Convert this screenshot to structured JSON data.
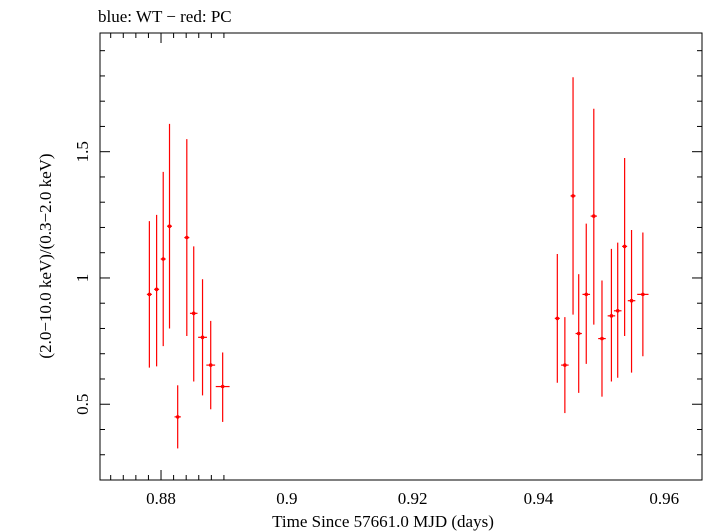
{
  "chart_data": {
    "type": "scatter",
    "title": "blue: WT − red: PC",
    "xlabel": "Time Since 57661.0 MJD (days)",
    "ylabel": "(2.0−10.0 keV)/(0.3−2.0 keV)",
    "xlim": [
      0.8703,
      0.966
    ],
    "ylim": [
      0.2,
      1.97
    ],
    "x_major_ticks": [
      0.88,
      0.9,
      0.92,
      0.94,
      0.96
    ],
    "x_tick_labels": [
      "0.88",
      "0.9",
      "0.92",
      "0.94",
      "0.96"
    ],
    "y_major_ticks": [
      0.5,
      1.0,
      1.5
    ],
    "y_tick_labels": [
      "0.5",
      "1",
      "1.5"
    ],
    "grid": false,
    "series": [
      {
        "color": "#ff0000",
        "points": [
          {
            "x": 0.87815,
            "y": 0.935,
            "xerr": 0.0004,
            "ylo": 0.645,
            "yhi": 1.225
          },
          {
            "x": 0.8793,
            "y": 0.955,
            "xerr": 0.0004,
            "ylo": 0.65,
            "yhi": 1.25
          },
          {
            "x": 0.88035,
            "y": 1.075,
            "xerr": 0.0004,
            "ylo": 0.73,
            "yhi": 1.42
          },
          {
            "x": 0.88135,
            "y": 1.205,
            "xerr": 0.0004,
            "ylo": 0.8,
            "yhi": 1.61
          },
          {
            "x": 0.88265,
            "y": 0.45,
            "xerr": 0.0005,
            "ylo": 0.325,
            "yhi": 0.575
          },
          {
            "x": 0.8841,
            "y": 1.16,
            "xerr": 0.0004,
            "ylo": 0.77,
            "yhi": 1.55
          },
          {
            "x": 0.8852,
            "y": 0.86,
            "xerr": 0.0006,
            "ylo": 0.59,
            "yhi": 1.125
          },
          {
            "x": 0.8866,
            "y": 0.765,
            "xerr": 0.0007,
            "ylo": 0.535,
            "yhi": 0.995
          },
          {
            "x": 0.8879,
            "y": 0.655,
            "xerr": 0.0007,
            "ylo": 0.48,
            "yhi": 0.83
          },
          {
            "x": 0.8898,
            "y": 0.57,
            "xerr": 0.0011,
            "ylo": 0.43,
            "yhi": 0.705
          },
          {
            "x": 0.943,
            "y": 0.84,
            "xerr": 0.0004,
            "ylo": 0.585,
            "yhi": 1.095
          },
          {
            "x": 0.9442,
            "y": 0.655,
            "xerr": 0.0006,
            "ylo": 0.465,
            "yhi": 0.845
          },
          {
            "x": 0.9455,
            "y": 1.325,
            "xerr": 0.0004,
            "ylo": 0.855,
            "yhi": 1.795
          },
          {
            "x": 0.9464,
            "y": 0.78,
            "xerr": 0.0005,
            "ylo": 0.545,
            "yhi": 1.015
          },
          {
            "x": 0.9476,
            "y": 0.935,
            "xerr": 0.0006,
            "ylo": 0.66,
            "yhi": 1.215
          },
          {
            "x": 0.9488,
            "y": 1.245,
            "xerr": 0.0005,
            "ylo": 0.815,
            "yhi": 1.67
          },
          {
            "x": 0.9501,
            "y": 0.76,
            "xerr": 0.0006,
            "ylo": 0.53,
            "yhi": 0.99
          },
          {
            "x": 0.9516,
            "y": 0.85,
            "xerr": 0.0006,
            "ylo": 0.59,
            "yhi": 1.115
          },
          {
            "x": 0.9526,
            "y": 0.87,
            "xerr": 0.0006,
            "ylo": 0.605,
            "yhi": 1.14
          },
          {
            "x": 0.9537,
            "y": 1.125,
            "xerr": 0.0004,
            "ylo": 0.77,
            "yhi": 1.475
          },
          {
            "x": 0.9548,
            "y": 0.91,
            "xerr": 0.0006,
            "ylo": 0.625,
            "yhi": 1.19
          },
          {
            "x": 0.9566,
            "y": 0.935,
            "xerr": 0.0009,
            "ylo": 0.69,
            "yhi": 1.18
          }
        ]
      }
    ]
  }
}
